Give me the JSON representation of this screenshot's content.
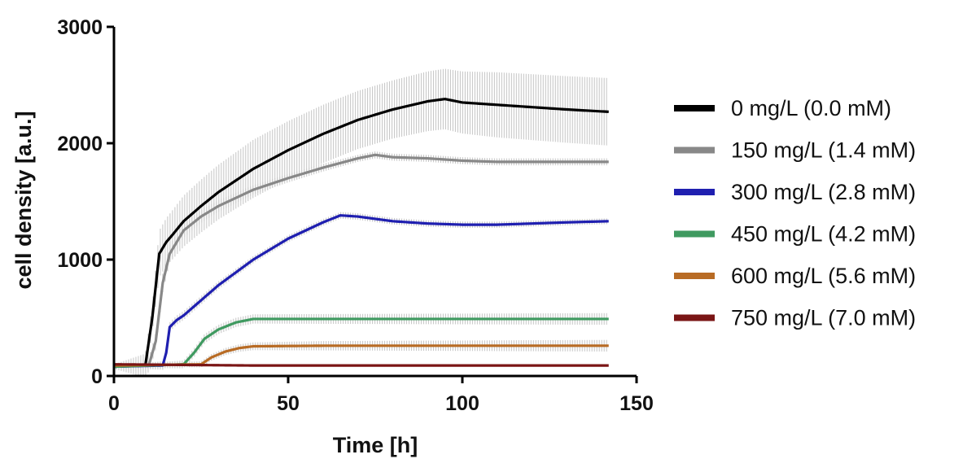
{
  "chart_data": {
    "type": "line",
    "title": "",
    "xlabel": "Time [h]",
    "ylabel": "cell density [a.u.]",
    "xlim": [
      0,
      150
    ],
    "ylim": [
      0,
      3000
    ],
    "xticks": [
      0,
      50,
      100,
      150
    ],
    "yticks": [
      0,
      1000,
      2000,
      3000
    ],
    "xtick_labels": [
      "0",
      "50",
      "100",
      "150"
    ],
    "ytick_labels": [
      "0",
      "1000",
      "2000",
      "3000"
    ],
    "grid": false,
    "legend_position": "right",
    "error_bars": "standard deviation band shown as light grey vertical bars",
    "series": [
      {
        "name": "0 mg/L (0.0 mM)",
        "color": "#000000",
        "points": [
          [
            0,
            80
          ],
          [
            9,
            90
          ],
          [
            11,
            500
          ],
          [
            13,
            1050
          ],
          [
            15,
            1150
          ],
          [
            17,
            1220
          ],
          [
            20,
            1330
          ],
          [
            25,
            1460
          ],
          [
            30,
            1580
          ],
          [
            40,
            1780
          ],
          [
            50,
            1940
          ],
          [
            60,
            2080
          ],
          [
            70,
            2200
          ],
          [
            80,
            2290
          ],
          [
            90,
            2360
          ],
          [
            95,
            2380
          ],
          [
            100,
            2350
          ],
          [
            110,
            2330
          ],
          [
            120,
            2310
          ],
          [
            130,
            2290
          ],
          [
            142,
            2270
          ]
        ],
        "error": [
          [
            0,
            20
          ],
          [
            11,
            120
          ],
          [
            13,
            200
          ],
          [
            20,
            220
          ],
          [
            40,
            250
          ],
          [
            60,
            250
          ],
          [
            80,
            250
          ],
          [
            95,
            260
          ],
          [
            110,
            280
          ],
          [
            142,
            290
          ]
        ]
      },
      {
        "name": "150 mg/L (1.4 mM)",
        "color": "#888888",
        "points": [
          [
            0,
            80
          ],
          [
            10,
            90
          ],
          [
            12,
            300
          ],
          [
            14,
            800
          ],
          [
            16,
            1050
          ],
          [
            20,
            1250
          ],
          [
            25,
            1370
          ],
          [
            30,
            1460
          ],
          [
            40,
            1600
          ],
          [
            50,
            1700
          ],
          [
            60,
            1790
          ],
          [
            70,
            1870
          ],
          [
            75,
            1900
          ],
          [
            80,
            1880
          ],
          [
            90,
            1870
          ],
          [
            100,
            1850
          ],
          [
            110,
            1840
          ],
          [
            120,
            1840
          ],
          [
            130,
            1840
          ],
          [
            142,
            1840
          ]
        ],
        "error": [
          [
            0,
            15
          ],
          [
            14,
            80
          ],
          [
            20,
            60
          ],
          [
            40,
            40
          ],
          [
            70,
            30
          ],
          [
            142,
            30
          ]
        ]
      },
      {
        "name": "300 mg/L (2.8 mM)",
        "color": "#1f1fb0",
        "points": [
          [
            0,
            80
          ],
          [
            14,
            90
          ],
          [
            15,
            200
          ],
          [
            16,
            420
          ],
          [
            18,
            480
          ],
          [
            20,
            520
          ],
          [
            25,
            650
          ],
          [
            30,
            780
          ],
          [
            40,
            1000
          ],
          [
            50,
            1180
          ],
          [
            60,
            1320
          ],
          [
            65,
            1380
          ],
          [
            70,
            1370
          ],
          [
            80,
            1330
          ],
          [
            90,
            1310
          ],
          [
            100,
            1300
          ],
          [
            110,
            1300
          ],
          [
            120,
            1310
          ],
          [
            130,
            1320
          ],
          [
            142,
            1330
          ]
        ],
        "error": [
          [
            0,
            10
          ],
          [
            16,
            40
          ],
          [
            40,
            30
          ],
          [
            142,
            25
          ]
        ]
      },
      {
        "name": "450 mg/L (4.2 mM)",
        "color": "#3f9a60",
        "points": [
          [
            0,
            80
          ],
          [
            20,
            100
          ],
          [
            23,
            200
          ],
          [
            26,
            320
          ],
          [
            30,
            400
          ],
          [
            35,
            460
          ],
          [
            40,
            490
          ],
          [
            50,
            490
          ],
          [
            60,
            490
          ],
          [
            80,
            490
          ],
          [
            100,
            490
          ],
          [
            120,
            490
          ],
          [
            142,
            490
          ]
        ],
        "error": [
          [
            0,
            10
          ],
          [
            25,
            40
          ],
          [
            40,
            40
          ],
          [
            142,
            50
          ]
        ]
      },
      {
        "name": "600 mg/L (5.6 mM)",
        "color": "#b86b24",
        "points": [
          [
            0,
            90
          ],
          [
            25,
            100
          ],
          [
            28,
            160
          ],
          [
            32,
            210
          ],
          [
            36,
            240
          ],
          [
            40,
            255
          ],
          [
            60,
            260
          ],
          [
            80,
            260
          ],
          [
            100,
            260
          ],
          [
            120,
            260
          ],
          [
            142,
            260
          ]
        ],
        "error": [
          [
            0,
            10
          ],
          [
            30,
            30
          ],
          [
            60,
            40
          ],
          [
            142,
            50
          ]
        ]
      },
      {
        "name": "750 mg/L (7.0 mM)",
        "color": "#7a1515",
        "points": [
          [
            0,
            100
          ],
          [
            20,
            95
          ],
          [
            40,
            90
          ],
          [
            60,
            90
          ],
          [
            80,
            90
          ],
          [
            100,
            90
          ],
          [
            120,
            90
          ],
          [
            142,
            90
          ]
        ],
        "error": [
          [
            0,
            10
          ],
          [
            142,
            10
          ]
        ]
      }
    ]
  }
}
